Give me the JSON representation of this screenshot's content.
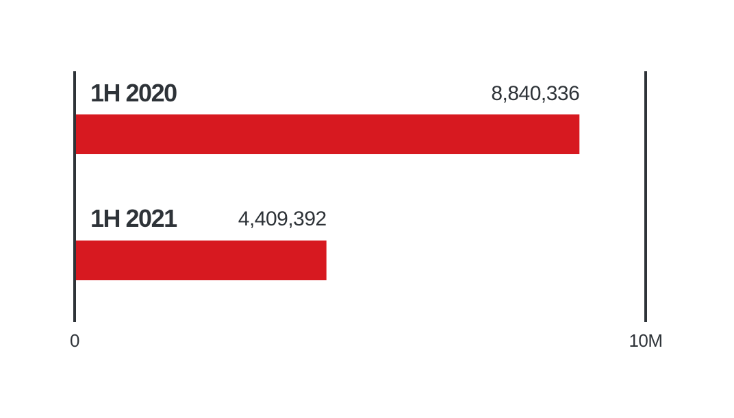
{
  "chart_data": {
    "type": "bar",
    "orientation": "horizontal",
    "categories": [
      "1H 2020",
      "1H 2021"
    ],
    "values": [
      8840336,
      4409392
    ],
    "value_labels": [
      "8,840,336",
      "4,409,392"
    ],
    "xlim": [
      0,
      10000000
    ],
    "x_ticks": [
      {
        "value": 0,
        "label": "0"
      },
      {
        "value": 10000000,
        "label": "10M"
      }
    ],
    "title": "",
    "xlabel": "",
    "ylabel": "",
    "grid": false,
    "legend": "none"
  },
  "colors": {
    "bar": "#d71920",
    "axis": "#2e3338",
    "text": "#2e3338"
  }
}
